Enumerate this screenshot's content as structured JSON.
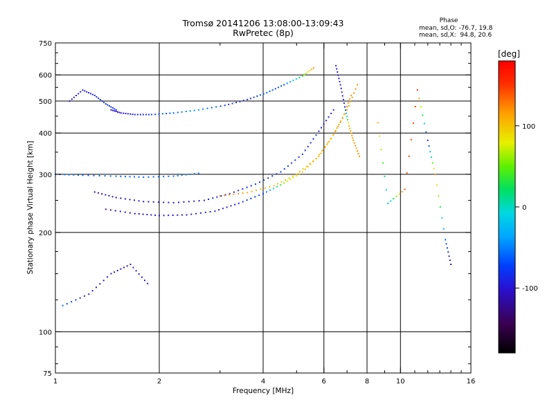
{
  "header": {
    "title": "Tromsø 20141206 13:08:00-13:09:43",
    "subtitle": "RwPretec (8p)"
  },
  "phase_box": {
    "heading": "Phase",
    "line_o": "mean, sd,O: -76.7, 19.8",
    "line_x": "mean, sd,X:  94.8, 20.6"
  },
  "colorbar": {
    "label": "[deg]",
    "range": [
      -180,
      180
    ],
    "ticks": [
      {
        "value": 100,
        "label": "100"
      },
      {
        "value": 0,
        "label": "0"
      },
      {
        "value": -100,
        "label": "-100"
      }
    ]
  },
  "chart_data": {
    "type": "scatter",
    "title": "Tromsø 20141206 13:08:00-13:09:43",
    "subtitle": "RwPretec (8p)",
    "xlabel": "Frequency [MHz]",
    "ylabel": "Stationary phase Virtual Height [km]",
    "x_scale": "log",
    "y_scale": "log",
    "xlim": [
      1,
      16
    ],
    "ylim": [
      75,
      750
    ],
    "x_ticks": [
      {
        "value": 1,
        "label": "1"
      },
      {
        "value": 2,
        "label": "2"
      },
      {
        "value": 4,
        "label": "4"
      },
      {
        "value": 6,
        "label": "6"
      },
      {
        "value": 8,
        "label": "8"
      },
      {
        "value": 10,
        "label": "10"
      },
      {
        "value": 16,
        "label": "16"
      }
    ],
    "x_grid": [
      2,
      4,
      6,
      8,
      10
    ],
    "y_ticks": [
      {
        "value": 75,
        "label": "75"
      },
      {
        "value": 100,
        "label": "100"
      },
      {
        "value": 200,
        "label": "200"
      },
      {
        "value": 300,
        "label": "300"
      },
      {
        "value": 400,
        "label": "400"
      },
      {
        "value": 500,
        "label": "500"
      },
      {
        "value": 600,
        "label": "600"
      },
      {
        "value": 750,
        "label": "750"
      }
    ],
    "y_grid": [
      100,
      200,
      300,
      400,
      500,
      600
    ],
    "grid": true,
    "series": [
      {
        "x": [
          1.45,
          1.55,
          1.7,
          1.9,
          2.2,
          2.6,
          3.1,
          3.6,
          4.1,
          4.6,
          5.2,
          5.6
        ],
        "y": [
          470,
          460,
          455,
          455,
          460,
          470,
          485,
          505,
          530,
          560,
          595,
          630
        ],
        "phase": [
          -105,
          -100,
          -90,
          -80,
          -60,
          -40,
          -80,
          -90,
          -60,
          -70,
          40,
          120
        ]
      },
      {
        "x": [
          1.1,
          1.2,
          1.3,
          1.4,
          1.5
        ],
        "y": [
          500,
          540,
          520,
          490,
          470
        ],
        "phase": [
          -100,
          -95,
          -90,
          -85,
          -80
        ]
      },
      {
        "x": [
          1.0,
          1.2,
          1.5,
          1.8,
          2.2,
          2.6
        ],
        "y": [
          300,
          298,
          296,
          294,
          296,
          302
        ],
        "phase": [
          -55,
          -60,
          -60,
          -60,
          -55,
          -50
        ]
      },
      {
        "x": [
          1.3,
          1.5,
          1.8,
          2.2,
          2.7,
          3.2,
          3.8,
          4.5,
          5.2,
          5.8,
          6.4
        ],
        "y": [
          265,
          255,
          248,
          246,
          250,
          262,
          280,
          305,
          345,
          405,
          470
        ],
        "phase": [
          -100,
          -105,
          -100,
          -100,
          -95,
          -90,
          -80,
          -80,
          -85,
          -90,
          -95
        ]
      },
      {
        "x": [
          1.4,
          1.7,
          2.0,
          2.4,
          2.9,
          3.4,
          4.0,
          4.6,
          5.2,
          5.8,
          6.3,
          6.8,
          7.2
        ],
        "y": [
          235,
          228,
          225,
          226,
          232,
          245,
          262,
          282,
          305,
          340,
          385,
          445,
          520
        ],
        "phase": [
          -110,
          -105,
          -100,
          -100,
          -95,
          -90,
          -70,
          60,
          100,
          105,
          110,
          115,
          120
        ]
      },
      {
        "x": [
          3.0,
          3.6,
          4.3,
          5.0,
          5.7,
          6.4,
          7.0,
          7.5
        ],
        "y": [
          258,
          264,
          277,
          300,
          335,
          395,
          470,
          560
        ],
        "phase": [
          120,
          110,
          100,
          100,
          105,
          110,
          115,
          120
        ]
      },
      {
        "x": [
          6.5,
          6.7,
          6.9,
          7.1,
          7.3,
          7.6
        ],
        "y": [
          640,
          560,
          480,
          420,
          380,
          340
        ],
        "phase": [
          -100,
          -95,
          -90,
          110,
          115,
          120
        ]
      },
      {
        "x": [
          1.05,
          1.25,
          1.45,
          1.65,
          1.85
        ],
        "y": [
          120,
          130,
          150,
          160,
          140
        ],
        "phase": [
          -60,
          -90,
          -100,
          -100,
          -95
        ]
      },
      {
        "x": [
          8.6,
          9.2,
          10.3,
          11.2,
          12.0,
          12.6,
          13.5,
          14.0
        ],
        "y": [
          430,
          245,
          270,
          540,
          380,
          300,
          190,
          160
        ],
        "phase": [
          110,
          -30,
          140,
          150,
          -100,
          120,
          -60,
          -110
        ]
      }
    ]
  }
}
